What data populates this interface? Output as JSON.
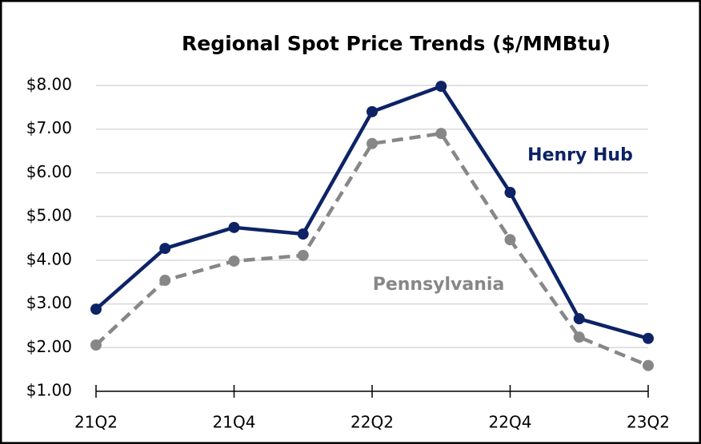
{
  "chart_data": {
    "type": "line",
    "title": "Regional Spot Price Trends ($/MMBtu)",
    "categories": [
      "21Q2",
      null,
      "21Q4",
      null,
      "22Q2",
      null,
      "22Q4",
      null,
      "23Q2"
    ],
    "series": [
      {
        "name": "Henry Hub",
        "color": "#0d2366",
        "dashed": false,
        "values": [
          2.88,
          4.27,
          4.75,
          4.6,
          7.4,
          7.98,
          5.55,
          2.66,
          2.21
        ]
      },
      {
        "name": "Pennsylvania",
        "color": "#878787",
        "dashed": true,
        "values": [
          2.06,
          3.54,
          3.98,
          4.11,
          6.67,
          6.9,
          4.47,
          2.24,
          1.59
        ]
      }
    ],
    "ylim": [
      1,
      8
    ],
    "yticks": [
      {
        "value": 1,
        "label": "$1.00"
      },
      {
        "value": 2,
        "label": "$2.00"
      },
      {
        "value": 3,
        "label": "$3.00"
      },
      {
        "value": 4,
        "label": "$4.00"
      },
      {
        "value": 5,
        "label": "$5.00"
      },
      {
        "value": 6,
        "label": "$6.00"
      },
      {
        "value": 7,
        "label": "$7.00"
      },
      {
        "value": 8,
        "label": "$8.00"
      }
    ],
    "grid": true
  }
}
